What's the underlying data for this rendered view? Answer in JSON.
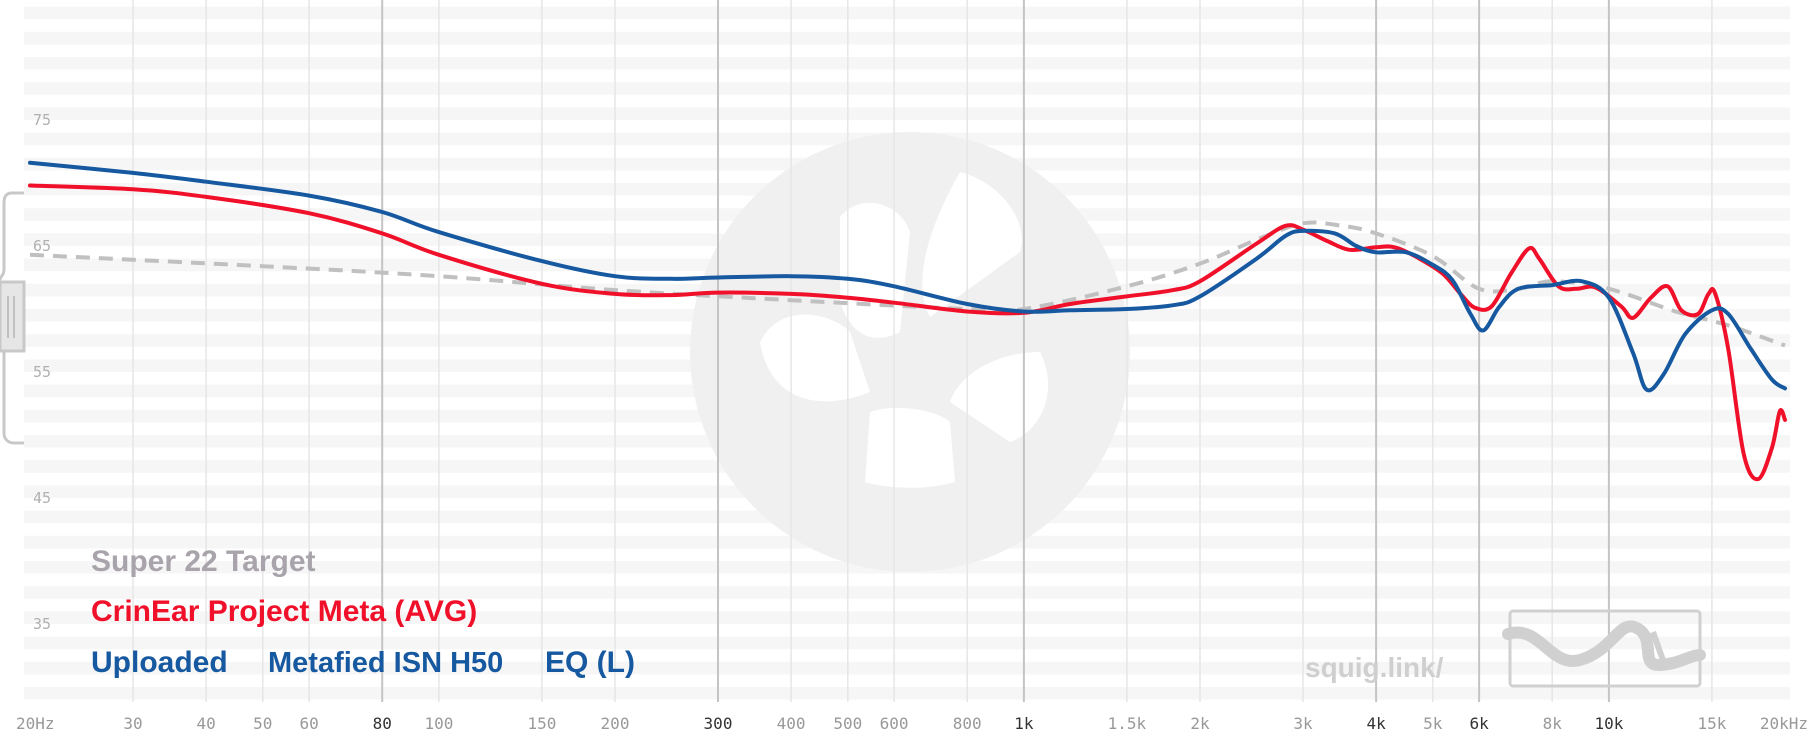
{
  "chart_data": {
    "type": "line",
    "x_scale": "log",
    "xlim": [
      20,
      20000
    ],
    "ylim": [
      30,
      86
    ],
    "grid": true,
    "y_ticks": [
      {
        "value": 75,
        "label": "75"
      },
      {
        "value": 65,
        "label": "65"
      },
      {
        "value": 55,
        "label": "55"
      },
      {
        "value": 45,
        "label": "45"
      },
      {
        "value": 35,
        "label": "35"
      }
    ],
    "x_ticks": [
      {
        "value": 20,
        "label": "20Hz",
        "major": false
      },
      {
        "value": 30,
        "label": "30",
        "major": false
      },
      {
        "value": 40,
        "label": "40",
        "major": false
      },
      {
        "value": 50,
        "label": "50",
        "major": false
      },
      {
        "value": 60,
        "label": "60",
        "major": false
      },
      {
        "value": 80,
        "label": "80",
        "major": true
      },
      {
        "value": 100,
        "label": "100",
        "major": false
      },
      {
        "value": 150,
        "label": "150",
        "major": false
      },
      {
        "value": 200,
        "label": "200",
        "major": false
      },
      {
        "value": 300,
        "label": "300",
        "major": true
      },
      {
        "value": 400,
        "label": "400",
        "major": false
      },
      {
        "value": 500,
        "label": "500",
        "major": false
      },
      {
        "value": 600,
        "label": "600",
        "major": false
      },
      {
        "value": 800,
        "label": "800",
        "major": false
      },
      {
        "value": 1000,
        "label": "1k",
        "major": true
      },
      {
        "value": 1500,
        "label": "1.5k",
        "major": false
      },
      {
        "value": 2000,
        "label": "2k",
        "major": false
      },
      {
        "value": 3000,
        "label": "3k",
        "major": false
      },
      {
        "value": 4000,
        "label": "4k",
        "major": true
      },
      {
        "value": 5000,
        "label": "5k",
        "major": false
      },
      {
        "value": 6000,
        "label": "6k",
        "major": true
      },
      {
        "value": 8000,
        "label": "8k",
        "major": false
      },
      {
        "value": 10000,
        "label": "10k",
        "major": true
      },
      {
        "value": 15000,
        "label": "15k",
        "major": false
      },
      {
        "value": 20000,
        "label": "20kHz",
        "major": false
      }
    ],
    "series": [
      {
        "name": "Super 22 Target",
        "color": "#c0c0c0",
        "dashed": true,
        "points": [
          [
            20,
            64.3
          ],
          [
            50,
            63.4
          ],
          [
            100,
            62.6
          ],
          [
            200,
            61.5
          ],
          [
            400,
            60.7
          ],
          [
            800,
            60.0
          ],
          [
            1000,
            60.0
          ],
          [
            1500,
            61.8
          ],
          [
            2000,
            63.6
          ],
          [
            2500,
            65.5
          ],
          [
            3000,
            66.8
          ],
          [
            3500,
            66.6
          ],
          [
            4000,
            66.0
          ],
          [
            5000,
            64.2
          ],
          [
            6000,
            61.6
          ],
          [
            7000,
            61.6
          ],
          [
            8000,
            62.2
          ],
          [
            10000,
            61.6
          ],
          [
            13000,
            59.8
          ],
          [
            16000,
            58.7
          ],
          [
            20000,
            57.1
          ]
        ]
      },
      {
        "name": "CrinEar Project Meta (AVG)",
        "color": "#f0102a",
        "dashed": false,
        "points": [
          [
            20,
            69.8
          ],
          [
            30,
            69.5
          ],
          [
            40,
            68.9
          ],
          [
            60,
            67.6
          ],
          [
            80,
            66.0
          ],
          [
            100,
            64.3
          ],
          [
            150,
            62.0
          ],
          [
            200,
            61.2
          ],
          [
            250,
            61.1
          ],
          [
            300,
            61.3
          ],
          [
            400,
            61.2
          ],
          [
            500,
            60.9
          ],
          [
            600,
            60.5
          ],
          [
            800,
            59.8
          ],
          [
            1000,
            59.7
          ],
          [
            1200,
            60.4
          ],
          [
            1500,
            61.0
          ],
          [
            1800,
            61.5
          ],
          [
            2000,
            62.2
          ],
          [
            2500,
            65.2
          ],
          [
            2800,
            66.6
          ],
          [
            3000,
            66.3
          ],
          [
            3300,
            65.4
          ],
          [
            3600,
            64.7
          ],
          [
            4000,
            64.9
          ],
          [
            4300,
            64.9
          ],
          [
            4700,
            64.1
          ],
          [
            5200,
            62.8
          ],
          [
            5600,
            61.1
          ],
          [
            5900,
            60.1
          ],
          [
            6300,
            60.2
          ],
          [
            6800,
            62.8
          ],
          [
            7300,
            64.8
          ],
          [
            7600,
            64.0
          ],
          [
            8200,
            61.8
          ],
          [
            8800,
            61.6
          ],
          [
            9500,
            61.7
          ],
          [
            10500,
            60.2
          ],
          [
            11000,
            59.3
          ],
          [
            11800,
            60.9
          ],
          [
            12600,
            61.8
          ],
          [
            13300,
            59.9
          ],
          [
            14200,
            59.6
          ],
          [
            14800,
            61.2
          ],
          [
            15200,
            61.2
          ],
          [
            16000,
            56.8
          ],
          [
            17000,
            48.5
          ],
          [
            18000,
            46.5
          ],
          [
            19000,
            49.0
          ],
          [
            19600,
            51.9
          ],
          [
            20000,
            51.2
          ]
        ]
      },
      {
        "name": "Metafied ISN H50 EQ (L)",
        "color": "#1659a0",
        "dashed": false,
        "points": [
          [
            20,
            71.6
          ],
          [
            30,
            70.8
          ],
          [
            40,
            70.1
          ],
          [
            60,
            69.0
          ],
          [
            80,
            67.7
          ],
          [
            100,
            66.1
          ],
          [
            150,
            63.8
          ],
          [
            200,
            62.6
          ],
          [
            250,
            62.4
          ],
          [
            300,
            62.5
          ],
          [
            400,
            62.6
          ],
          [
            500,
            62.4
          ],
          [
            600,
            61.8
          ],
          [
            800,
            60.4
          ],
          [
            1000,
            59.8
          ],
          [
            1200,
            59.9
          ],
          [
            1500,
            60.0
          ],
          [
            1800,
            60.3
          ],
          [
            2000,
            61.0
          ],
          [
            2500,
            64.0
          ],
          [
            2800,
            65.8
          ],
          [
            3000,
            66.2
          ],
          [
            3400,
            66.0
          ],
          [
            3700,
            65.0
          ],
          [
            4000,
            64.5
          ],
          [
            4500,
            64.5
          ],
          [
            5000,
            63.5
          ],
          [
            5400,
            62.3
          ],
          [
            5800,
            59.6
          ],
          [
            6100,
            58.3
          ],
          [
            6500,
            60.2
          ],
          [
            7000,
            61.6
          ],
          [
            8000,
            61.9
          ],
          [
            9000,
            62.2
          ],
          [
            10000,
            60.9
          ],
          [
            11000,
            56.5
          ],
          [
            11600,
            53.6
          ],
          [
            12400,
            54.8
          ],
          [
            13500,
            58.0
          ],
          [
            15000,
            59.9
          ],
          [
            16000,
            59.6
          ],
          [
            17500,
            56.8
          ],
          [
            19000,
            54.4
          ],
          [
            20000,
            53.7
          ]
        ]
      }
    ],
    "legend": {
      "position": "bottom-left",
      "entries": [
        {
          "text": "Super 22 Target",
          "color": "#a9a4ab"
        },
        {
          "text": "CrinEar Project Meta (AVG)",
          "color": "#f0102a"
        },
        {
          "parts": [
            "Uploaded",
            "Metafied ISN H50",
            "EQ (L)"
          ],
          "color": "#1659a0"
        }
      ]
    },
    "watermark_text": "squig.link/"
  }
}
